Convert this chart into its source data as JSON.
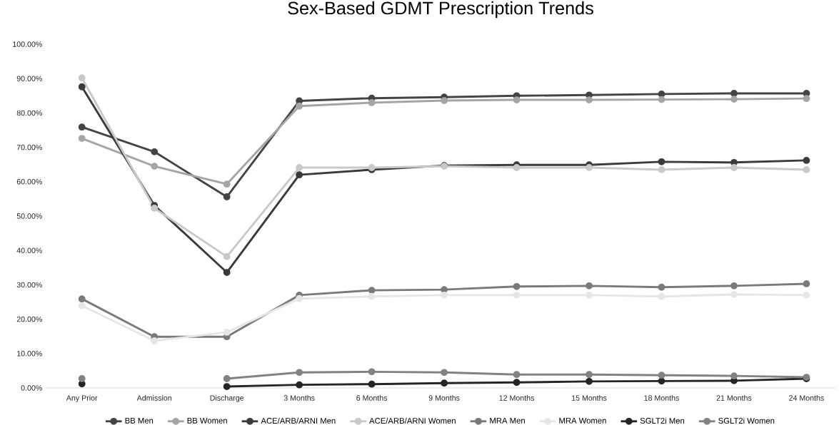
{
  "chart_data": {
    "type": "line",
    "title": "Sex-Based GDMT Prescription Trends",
    "categories": [
      "Any Prior",
      "Admission",
      "Discharge",
      "3 Months",
      "6 Months",
      "9 Months",
      "12 Months",
      "15 Months",
      "18 Months",
      "21 Months",
      "24 Months"
    ],
    "series": [
      {
        "name": "BB Men",
        "color": "#444444",
        "values": [
          75.9,
          68.7,
          55.6,
          83.5,
          84.3,
          84.6,
          85.0,
          85.2,
          85.5,
          85.7,
          85.7
        ]
      },
      {
        "name": "BB Women",
        "color": "#a5a5a5",
        "values": [
          72.6,
          64.5,
          59.3,
          82.0,
          83.0,
          83.6,
          83.8,
          83.8,
          83.9,
          84.0,
          84.2
        ]
      },
      {
        "name": "ACE/ARB/ARNI Men",
        "color": "#3b3b3b",
        "values": [
          87.6,
          53.1,
          33.6,
          62.0,
          63.5,
          64.7,
          64.9,
          64.9,
          65.8,
          65.6,
          66.2
        ]
      },
      {
        "name": "ACE/ARB/ARNI Women",
        "color": "#c9c9c9",
        "values": [
          90.2,
          52.3,
          38.2,
          64.1,
          64.1,
          64.5,
          64.1,
          64.1,
          63.5,
          64.1,
          63.5
        ]
      },
      {
        "name": "MRA Men",
        "color": "#7a7a7a",
        "values": [
          25.9,
          14.9,
          14.9,
          27.0,
          28.4,
          28.6,
          29.5,
          29.7,
          29.3,
          29.7,
          30.3
        ]
      },
      {
        "name": "MRA Women",
        "color": "#e6e6e6",
        "values": [
          23.9,
          13.7,
          16.2,
          26.0,
          26.6,
          27.0,
          27.0,
          27.0,
          26.6,
          27.2,
          27.0
        ]
      },
      {
        "name": "SGLT2i Men",
        "color": "#252525",
        "values": [
          1.2,
          null,
          0.4,
          0.9,
          1.1,
          1.4,
          1.6,
          1.9,
          2.0,
          2.1,
          2.7
        ]
      },
      {
        "name": "SGLT2i Women",
        "color": "#828282",
        "values": [
          2.7,
          null,
          2.7,
          4.5,
          4.7,
          4.5,
          3.9,
          3.9,
          3.7,
          3.5,
          3.1
        ]
      }
    ],
    "ylim": [
      0,
      100
    ],
    "yticks": [
      {
        "value": 0,
        "label": "0.00%"
      },
      {
        "value": 10,
        "label": "10.00%"
      },
      {
        "value": 20,
        "label": "20.00%"
      },
      {
        "value": 30,
        "label": "30.00%"
      },
      {
        "value": 40,
        "label": "40.00%"
      },
      {
        "value": 50,
        "label": "50.00%"
      },
      {
        "value": 60,
        "label": "60.00%"
      },
      {
        "value": 70,
        "label": "70.00%"
      },
      {
        "value": 80,
        "label": "80.00%"
      },
      {
        "value": 90,
        "label": "90.00%"
      },
      {
        "value": 100,
        "label": "100.00%"
      }
    ],
    "legend": "bottom",
    "marker": "circle",
    "line_style": "solid"
  }
}
